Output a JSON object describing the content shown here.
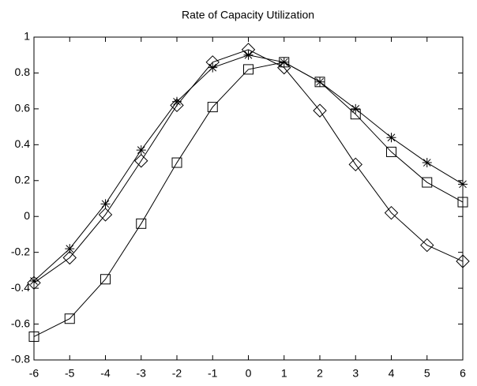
{
  "chart_data": {
    "type": "line",
    "title": "Rate of Capacity Utilization",
    "x": [
      -6,
      -5,
      -4,
      -3,
      -2,
      -1,
      0,
      1,
      2,
      3,
      4,
      5,
      6
    ],
    "series": [
      {
        "color": "#000000",
        "marker": "star",
        "values": [
          -0.36,
          -0.18,
          0.07,
          0.37,
          0.64,
          0.83,
          0.9,
          0.86,
          0.75,
          0.6,
          0.44,
          0.3,
          0.18
        ]
      },
      {
        "color": "#000000",
        "marker": "diamond",
        "values": [
          -0.37,
          -0.23,
          0.01,
          0.31,
          0.62,
          0.86,
          0.93,
          0.83,
          0.59,
          0.29,
          0.02,
          -0.16,
          -0.25
        ]
      },
      {
        "color": "#000000",
        "marker": "square",
        "values": [
          -0.67,
          -0.57,
          -0.35,
          -0.04,
          0.3,
          0.61,
          0.82,
          0.86,
          0.75,
          0.57,
          0.36,
          0.19,
          0.08
        ]
      }
    ],
    "xlim": [
      -6,
      6
    ],
    "xticks": [
      -6,
      -5,
      -4,
      -3,
      -2,
      -1,
      0,
      1,
      2,
      3,
      4,
      5,
      6
    ],
    "ylim": [
      -0.8,
      1
    ],
    "yticks": [
      -0.8,
      -0.6,
      -0.4,
      -0.2,
      0,
      0.2,
      0.4,
      0.6,
      0.8,
      1
    ],
    "grid": false
  }
}
